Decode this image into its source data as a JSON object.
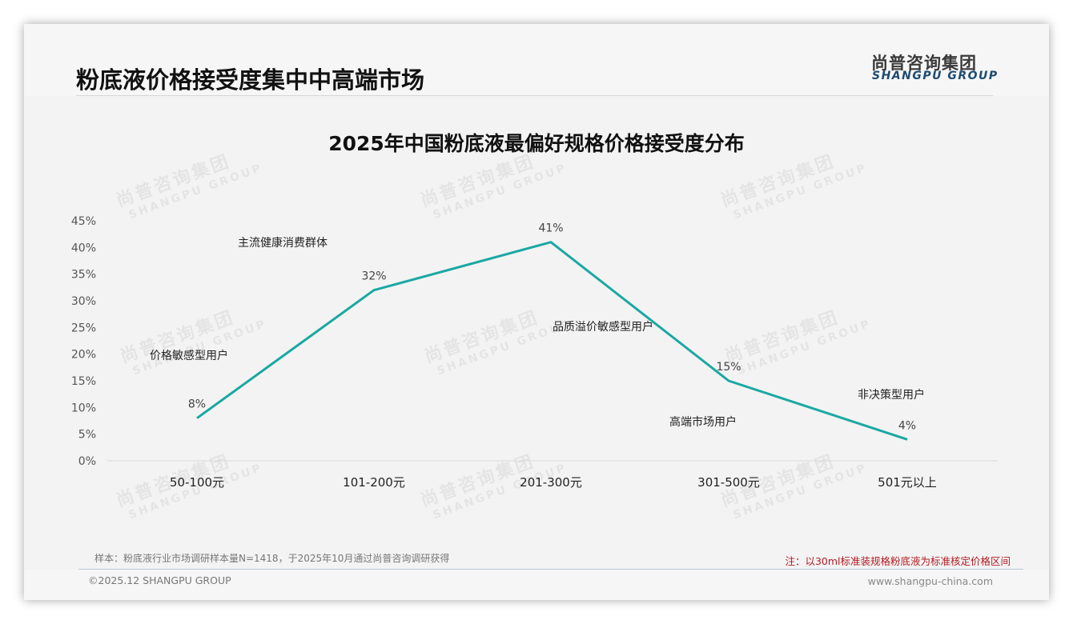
{
  "header": {
    "page_title": "粉底液价格接受度集中中高端市场",
    "logo_cn": "尚普咨询集团",
    "logo_en": "SHANGPU GROUP"
  },
  "watermark": {
    "cn": "尚普咨询集团",
    "en": "SHANGPU GROUP"
  },
  "chart_data": {
    "type": "line",
    "title": "2025年中国粉底液最偏好规格价格接受度分布",
    "categories": [
      "50-100元",
      "101-200元",
      "201-300元",
      "301-500元",
      "501元以上"
    ],
    "series": [
      {
        "name": "价格接受度",
        "values": [
          8,
          32,
          41,
          15,
          4
        ],
        "color": "#1aa8a3"
      }
    ],
    "data_labels": [
      "8%",
      "32%",
      "41%",
      "15%",
      "4%"
    ],
    "segment_annotations": [
      "价格敏感型用户",
      "主流健康消费群体",
      "品质溢价敏感型用户",
      "高端市场用户",
      "非决策型用户"
    ],
    "y_ticks": [
      "0%",
      "5%",
      "10%",
      "15%",
      "20%",
      "25%",
      "30%",
      "35%",
      "40%",
      "45%"
    ],
    "ylim": [
      0,
      45
    ],
    "xlabel": "",
    "ylabel": "",
    "grid": false,
    "legend": "none"
  },
  "footer": {
    "sample": "样本：粉底液行业市场调研样本量N=1418，于2025年10月通过尚普咨询调研获得",
    "note": "注：以30ml标准装规格粉底液为标准核定价格区间",
    "copyright": "©2025.12 SHANGPU GROUP",
    "website": "www.shangpu-china.com"
  }
}
